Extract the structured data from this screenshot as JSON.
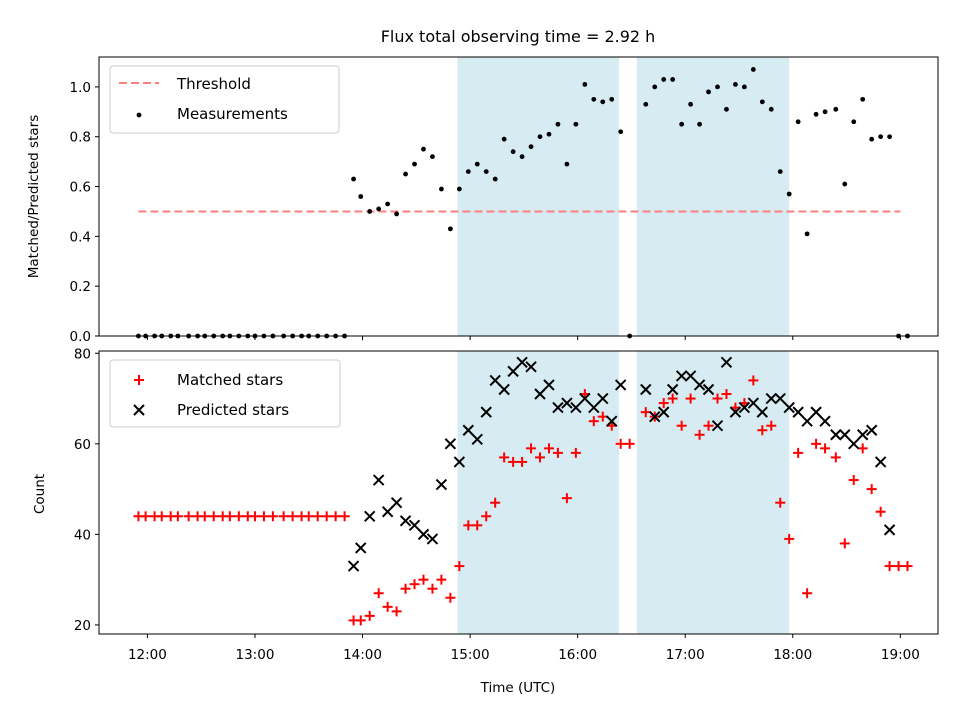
{
  "colors": {
    "threshold": "#ff7f7f",
    "measurement": "#000000",
    "matched": "#ff0000",
    "predicted": "#000000",
    "span": "#add8e6"
  },
  "chart_data": [
    {
      "type": "scatter",
      "title": "Flux total observing time = 2.92 h",
      "xlabel": "",
      "ylabel": "Matched/Predicted stars",
      "xlim": [
        "11:33",
        "19:21"
      ],
      "ylim": [
        0,
        1.12
      ],
      "yticks": [
        0.0,
        0.2,
        0.4,
        0.6,
        0.8,
        1.0
      ],
      "ytick_labels": [
        "0.0",
        "0.2",
        "0.4",
        "0.6",
        "0.8",
        "1.0"
      ],
      "xticks": [
        "12:00",
        "13:00",
        "14:00",
        "15:00",
        "16:00",
        "17:00",
        "18:00",
        "19:00"
      ],
      "legend_position": "top-left",
      "legend": [
        "Threshold",
        "Measurements"
      ],
      "shaded_spans": [
        [
          "14:53",
          "16:23"
        ],
        [
          "16:33",
          "17:58"
        ]
      ],
      "threshold": {
        "name": "Threshold",
        "value": 0.5,
        "x_range": [
          "11:55",
          "19:00"
        ]
      },
      "series": [
        {
          "name": "Measurements",
          "points": [
            [
              "11:55",
              0
            ],
            [
              "11:59",
              0
            ],
            [
              "12:04",
              0
            ],
            [
              "12:08",
              0
            ],
            [
              "12:13",
              0
            ],
            [
              "12:17",
              0
            ],
            [
              "12:23",
              0
            ],
            [
              "12:28",
              0
            ],
            [
              "12:32",
              0
            ],
            [
              "12:37",
              0
            ],
            [
              "12:42",
              0
            ],
            [
              "12:46",
              0
            ],
            [
              "12:51",
              0
            ],
            [
              "12:56",
              0
            ],
            [
              "13:00",
              0
            ],
            [
              "13:05",
              0
            ],
            [
              "13:10",
              0
            ],
            [
              "13:16",
              0
            ],
            [
              "13:21",
              0
            ],
            [
              "13:26",
              0
            ],
            [
              "13:30",
              0
            ],
            [
              "13:35",
              0
            ],
            [
              "13:40",
              0
            ],
            [
              "13:45",
              0
            ],
            [
              "13:50",
              0
            ],
            [
              "13:55",
              0.63
            ],
            [
              "13:59",
              0.56
            ],
            [
              "14:04",
              0.5
            ],
            [
              "14:09",
              0.51
            ],
            [
              "14:14",
              0.53
            ],
            [
              "14:19",
              0.49
            ],
            [
              "14:24",
              0.65
            ],
            [
              "14:29",
              0.69
            ],
            [
              "14:34",
              0.75
            ],
            [
              "14:39",
              0.72
            ],
            [
              "14:44",
              0.59
            ],
            [
              "14:49",
              0.43
            ],
            [
              "14:54",
              0.59
            ],
            [
              "14:59",
              0.66
            ],
            [
              "15:04",
              0.69
            ],
            [
              "15:09",
              0.66
            ],
            [
              "15:14",
              0.63
            ],
            [
              "15:19",
              0.79
            ],
            [
              "15:24",
              0.74
            ],
            [
              "15:29",
              0.72
            ],
            [
              "15:34",
              0.76
            ],
            [
              "15:39",
              0.8
            ],
            [
              "15:44",
              0.81
            ],
            [
              "15:49",
              0.85
            ],
            [
              "15:54",
              0.69
            ],
            [
              "15:59",
              0.85
            ],
            [
              "16:04",
              1.01
            ],
            [
              "16:09",
              0.95
            ],
            [
              "16:14",
              0.94
            ],
            [
              "16:19",
              0.95
            ],
            [
              "16:24",
              0.82
            ],
            [
              "16:29",
              0
            ],
            [
              "16:38",
              0.93
            ],
            [
              "16:43",
              1.0
            ],
            [
              "16:48",
              1.03
            ],
            [
              "16:53",
              1.03
            ],
            [
              "16:58",
              0.85
            ],
            [
              "17:03",
              0.93
            ],
            [
              "17:08",
              0.85
            ],
            [
              "17:13",
              0.98
            ],
            [
              "17:18",
              1.0
            ],
            [
              "17:23",
              0.91
            ],
            [
              "17:28",
              1.01
            ],
            [
              "17:33",
              1.0
            ],
            [
              "17:38",
              1.07
            ],
            [
              "17:43",
              0.94
            ],
            [
              "17:48",
              0.91
            ],
            [
              "17:53",
              0.66
            ],
            [
              "17:58",
              0.57
            ],
            [
              "18:03",
              0.86
            ],
            [
              "18:08",
              0.41
            ],
            [
              "18:13",
              0.89
            ],
            [
              "18:18",
              0.9
            ],
            [
              "18:24",
              0.91
            ],
            [
              "18:29",
              0.61
            ],
            [
              "18:34",
              0.86
            ],
            [
              "18:39",
              0.95
            ],
            [
              "18:44",
              0.79
            ],
            [
              "18:49",
              0.8
            ],
            [
              "18:54",
              0.8
            ],
            [
              "18:59",
              0
            ],
            [
              "19:04",
              0
            ]
          ]
        }
      ]
    },
    {
      "type": "scatter",
      "title": "",
      "xlabel": "Time (UTC)",
      "ylabel": "Count",
      "xlim": [
        "11:33",
        "19:21"
      ],
      "ylim": [
        18,
        80.5
      ],
      "yticks": [
        20,
        40,
        60,
        80
      ],
      "ytick_labels": [
        "20",
        "40",
        "60",
        "80"
      ],
      "xticks": [
        "12:00",
        "13:00",
        "14:00",
        "15:00",
        "16:00",
        "17:00",
        "18:00",
        "19:00"
      ],
      "legend_position": "top-left",
      "legend": [
        "Matched stars",
        "Predicted stars"
      ],
      "shaded_spans": [
        [
          "14:53",
          "16:23"
        ],
        [
          "16:33",
          "17:58"
        ]
      ],
      "series": [
        {
          "name": "Matched stars",
          "marker": "+",
          "points": [
            [
              "11:55",
              44
            ],
            [
              "11:59",
              44
            ],
            [
              "12:04",
              44
            ],
            [
              "12:08",
              44
            ],
            [
              "12:13",
              44
            ],
            [
              "12:17",
              44
            ],
            [
              "12:23",
              44
            ],
            [
              "12:28",
              44
            ],
            [
              "12:32",
              44
            ],
            [
              "12:37",
              44
            ],
            [
              "12:42",
              44
            ],
            [
              "12:46",
              44
            ],
            [
              "12:51",
              44
            ],
            [
              "12:56",
              44
            ],
            [
              "13:00",
              44
            ],
            [
              "13:05",
              44
            ],
            [
              "13:10",
              44
            ],
            [
              "13:16",
              44
            ],
            [
              "13:21",
              44
            ],
            [
              "13:26",
              44
            ],
            [
              "13:30",
              44
            ],
            [
              "13:35",
              44
            ],
            [
              "13:40",
              44
            ],
            [
              "13:45",
              44
            ],
            [
              "13:50",
              44
            ],
            [
              "13:55",
              21
            ],
            [
              "13:59",
              21
            ],
            [
              "14:04",
              22
            ],
            [
              "14:09",
              27
            ],
            [
              "14:14",
              24
            ],
            [
              "14:19",
              23
            ],
            [
              "14:24",
              28
            ],
            [
              "14:29",
              29
            ],
            [
              "14:34",
              30
            ],
            [
              "14:39",
              28
            ],
            [
              "14:44",
              30
            ],
            [
              "14:49",
              26
            ],
            [
              "14:54",
              33
            ],
            [
              "14:59",
              42
            ],
            [
              "15:04",
              42
            ],
            [
              "15:09",
              44
            ],
            [
              "15:14",
              47
            ],
            [
              "15:19",
              57
            ],
            [
              "15:24",
              56
            ],
            [
              "15:29",
              56
            ],
            [
              "15:34",
              59
            ],
            [
              "15:39",
              57
            ],
            [
              "15:44",
              59
            ],
            [
              "15:49",
              58
            ],
            [
              "15:54",
              48
            ],
            [
              "15:59",
              58
            ],
            [
              "16:04",
              71
            ],
            [
              "16:09",
              65
            ],
            [
              "16:14",
              66
            ],
            [
              "16:19",
              64
            ],
            [
              "16:24",
              60
            ],
            [
              "16:29",
              60
            ],
            [
              "16:38",
              67
            ],
            [
              "16:43",
              66
            ],
            [
              "16:48",
              69
            ],
            [
              "16:53",
              70
            ],
            [
              "16:58",
              64
            ],
            [
              "17:03",
              70
            ],
            [
              "17:08",
              62
            ],
            [
              "17:13",
              64
            ],
            [
              "17:18",
              70
            ],
            [
              "17:23",
              71
            ],
            [
              "17:28",
              68
            ],
            [
              "17:33",
              69
            ],
            [
              "17:38",
              74
            ],
            [
              "17:43",
              63
            ],
            [
              "17:48",
              64
            ],
            [
              "17:53",
              47
            ],
            [
              "17:58",
              39
            ],
            [
              "18:03",
              58
            ],
            [
              "18:08",
              27
            ],
            [
              "18:13",
              60
            ],
            [
              "18:18",
              59
            ],
            [
              "18:24",
              57
            ],
            [
              "18:29",
              38
            ],
            [
              "18:34",
              52
            ],
            [
              "18:39",
              59
            ],
            [
              "18:44",
              50
            ],
            [
              "18:49",
              45
            ],
            [
              "18:54",
              33
            ],
            [
              "18:59",
              33
            ],
            [
              "19:04",
              33
            ]
          ]
        },
        {
          "name": "Predicted stars",
          "marker": "x",
          "points": [
            [
              "13:55",
              33
            ],
            [
              "13:59",
              37
            ],
            [
              "14:04",
              44
            ],
            [
              "14:09",
              52
            ],
            [
              "14:14",
              45
            ],
            [
              "14:19",
              47
            ],
            [
              "14:24",
              43
            ],
            [
              "14:29",
              42
            ],
            [
              "14:34",
              40
            ],
            [
              "14:39",
              39
            ],
            [
              "14:44",
              51
            ],
            [
              "14:49",
              60
            ],
            [
              "14:54",
              56
            ],
            [
              "14:59",
              63
            ],
            [
              "15:04",
              61
            ],
            [
              "15:09",
              67
            ],
            [
              "15:14",
              74
            ],
            [
              "15:19",
              72
            ],
            [
              "15:24",
              76
            ],
            [
              "15:29",
              78
            ],
            [
              "15:34",
              77
            ],
            [
              "15:39",
              71
            ],
            [
              "15:44",
              73
            ],
            [
              "15:49",
              68
            ],
            [
              "15:54",
              69
            ],
            [
              "15:59",
              68
            ],
            [
              "16:04",
              70
            ],
            [
              "16:09",
              68
            ],
            [
              "16:14",
              70
            ],
            [
              "16:19",
              65
            ],
            [
              "16:24",
              73
            ],
            [
              "16:38",
              72
            ],
            [
              "16:43",
              66
            ],
            [
              "16:48",
              67
            ],
            [
              "16:53",
              72
            ],
            [
              "16:58",
              75
            ],
            [
              "17:03",
              75
            ],
            [
              "17:08",
              73
            ],
            [
              "17:13",
              72
            ],
            [
              "17:18",
              64
            ],
            [
              "17:23",
              78
            ],
            [
              "17:28",
              67
            ],
            [
              "17:33",
              68
            ],
            [
              "17:38",
              69
            ],
            [
              "17:43",
              67
            ],
            [
              "17:48",
              70
            ],
            [
              "17:53",
              70
            ],
            [
              "17:58",
              68
            ],
            [
              "18:03",
              67
            ],
            [
              "18:08",
              65
            ],
            [
              "18:13",
              67
            ],
            [
              "18:18",
              65
            ],
            [
              "18:24",
              62
            ],
            [
              "18:29",
              62
            ],
            [
              "18:34",
              60
            ],
            [
              "18:39",
              62
            ],
            [
              "18:44",
              63
            ],
            [
              "18:49",
              56
            ],
            [
              "18:54",
              41
            ]
          ]
        }
      ]
    }
  ]
}
